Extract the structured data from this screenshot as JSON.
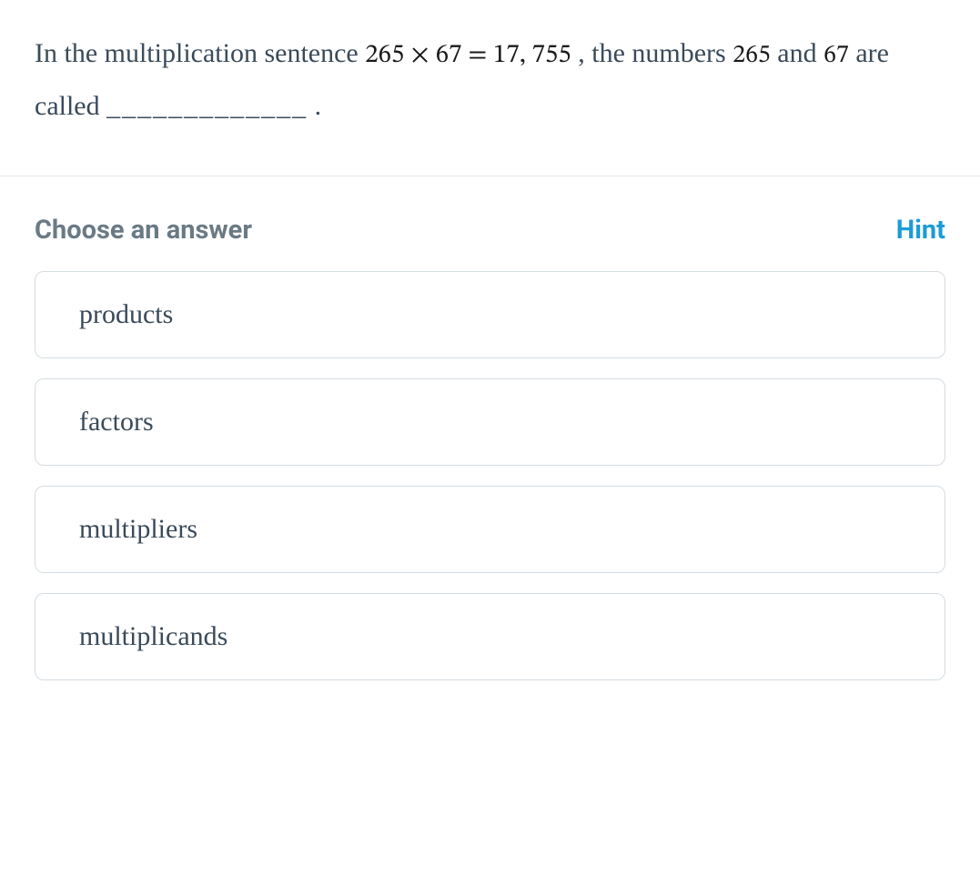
{
  "question": {
    "part1": "In the multiplication sentence ",
    "equation": "265 × 67 = 17, 755",
    "part2": " , the numbers ",
    "num1": "265",
    "part3": " and ",
    "num2": "67",
    "part4": " are called ",
    "blank": "_____________",
    "part5": "."
  },
  "answer_header": {
    "choose_label": "Choose an answer",
    "hint_label": "Hint"
  },
  "options": [
    {
      "label": "products"
    },
    {
      "label": "factors"
    },
    {
      "label": "multipliers"
    },
    {
      "label": "multiplicands"
    }
  ],
  "colors": {
    "text": "#3a4a5a",
    "math": "#1a1a1a",
    "choose": "#6a7a85",
    "hint": "#1b9cd7",
    "border": "#d5dde2",
    "divider": "#e5e8ea",
    "background": "#ffffff"
  },
  "typography": {
    "question_fontsize": 30,
    "math_fontsize": 29,
    "header_fontsize": 29,
    "option_fontsize": 30
  }
}
